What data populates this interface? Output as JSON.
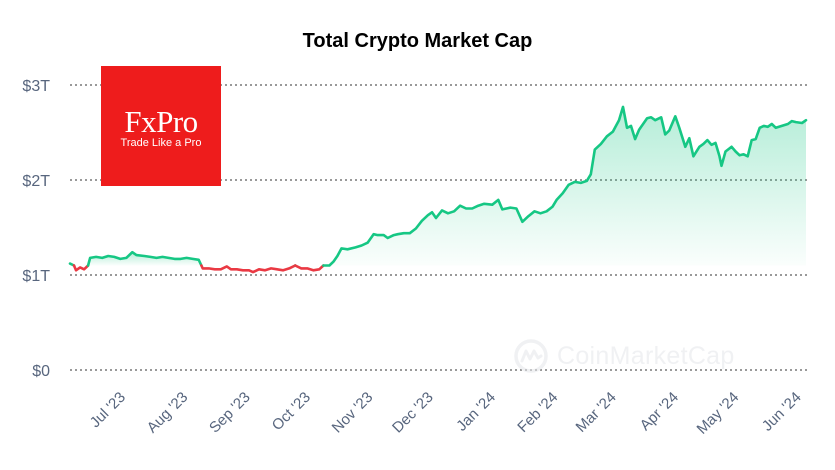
{
  "title": "Total Crypto Market Cap",
  "logo": {
    "name": "FxPro",
    "slogan": "Trade Like a Pro",
    "color": "#ee1c1c"
  },
  "watermark": "CoinMarketCap",
  "colors": {
    "up": "#16c784",
    "down": "#ea3943",
    "grid": "#333333",
    "tick": "#58667e"
  },
  "chart_data": {
    "type": "line",
    "title": "Total Crypto Market Cap",
    "xlabel": "",
    "ylabel": "",
    "unit": "USD trillions",
    "ylim": [
      0,
      3
    ],
    "yticks": [
      {
        "value": 0,
        "label": "$0"
      },
      {
        "value": 1,
        "label": "$1T"
      },
      {
        "value": 2,
        "label": "$2T"
      },
      {
        "value": 3,
        "label": "$3T"
      }
    ],
    "xlim": [
      "2023-06-12",
      "2024-06-14"
    ],
    "xticks": [
      {
        "date": "2023-07-01",
        "label": "Jul '23"
      },
      {
        "date": "2023-08-01",
        "label": "Aug '23"
      },
      {
        "date": "2023-09-01",
        "label": "Sep '23"
      },
      {
        "date": "2023-10-01",
        "label": "Oct '23"
      },
      {
        "date": "2023-11-01",
        "label": "Nov '23"
      },
      {
        "date": "2023-12-01",
        "label": "Dec '23"
      },
      {
        "date": "2024-01-01",
        "label": "Jan '24"
      },
      {
        "date": "2024-02-01",
        "label": "Feb '24"
      },
      {
        "date": "2024-03-01",
        "label": "Mar '24"
      },
      {
        "date": "2024-04-01",
        "label": "Apr '24"
      },
      {
        "date": "2024-05-01",
        "label": "May '24"
      },
      {
        "date": "2024-06-01",
        "label": "Jun '24"
      }
    ],
    "grid": "horizontal dashed",
    "baseline": 1.1,
    "series": [
      {
        "points": [
          [
            "2023-06-12",
            1.12
          ],
          [
            "2023-06-14",
            1.1
          ],
          [
            "2023-06-15",
            1.05
          ],
          [
            "2023-06-17",
            1.08
          ],
          [
            "2023-06-19",
            1.06
          ],
          [
            "2023-06-21",
            1.1
          ],
          [
            "2023-06-22",
            1.18
          ],
          [
            "2023-06-25",
            1.19
          ],
          [
            "2023-06-28",
            1.18
          ],
          [
            "2023-07-01",
            1.2
          ],
          [
            "2023-07-04",
            1.19
          ],
          [
            "2023-07-07",
            1.17
          ],
          [
            "2023-07-10",
            1.18
          ],
          [
            "2023-07-13",
            1.24
          ],
          [
            "2023-07-15",
            1.21
          ],
          [
            "2023-07-19",
            1.2
          ],
          [
            "2023-07-22",
            1.19
          ],
          [
            "2023-07-25",
            1.18
          ],
          [
            "2023-07-28",
            1.19
          ],
          [
            "2023-07-31",
            1.18
          ],
          [
            "2023-08-03",
            1.17
          ],
          [
            "2023-08-06",
            1.17
          ],
          [
            "2023-08-09",
            1.18
          ],
          [
            "2023-08-12",
            1.17
          ],
          [
            "2023-08-15",
            1.16
          ],
          [
            "2023-08-17",
            1.07
          ],
          [
            "2023-08-20",
            1.07
          ],
          [
            "2023-08-23",
            1.06
          ],
          [
            "2023-08-26",
            1.06
          ],
          [
            "2023-08-29",
            1.09
          ],
          [
            "2023-08-31",
            1.06
          ],
          [
            "2023-09-03",
            1.06
          ],
          [
            "2023-09-06",
            1.05
          ],
          [
            "2023-09-09",
            1.05
          ],
          [
            "2023-09-11",
            1.03
          ],
          [
            "2023-09-14",
            1.06
          ],
          [
            "2023-09-17",
            1.05
          ],
          [
            "2023-09-20",
            1.07
          ],
          [
            "2023-09-23",
            1.06
          ],
          [
            "2023-09-26",
            1.05
          ],
          [
            "2023-09-29",
            1.07
          ],
          [
            "2023-10-02",
            1.1
          ],
          [
            "2023-10-05",
            1.07
          ],
          [
            "2023-10-08",
            1.07
          ],
          [
            "2023-10-11",
            1.05
          ],
          [
            "2023-10-14",
            1.06
          ],
          [
            "2023-10-16",
            1.1
          ],
          [
            "2023-10-19",
            1.1
          ],
          [
            "2023-10-21",
            1.14
          ],
          [
            "2023-10-23",
            1.2
          ],
          [
            "2023-10-25",
            1.28
          ],
          [
            "2023-10-28",
            1.27
          ],
          [
            "2023-11-01",
            1.29
          ],
          [
            "2023-11-04",
            1.31
          ],
          [
            "2023-11-07",
            1.34
          ],
          [
            "2023-11-10",
            1.43
          ],
          [
            "2023-11-12",
            1.42
          ],
          [
            "2023-11-15",
            1.42
          ],
          [
            "2023-11-17",
            1.39
          ],
          [
            "2023-11-20",
            1.42
          ],
          [
            "2023-11-22",
            1.43
          ],
          [
            "2023-11-25",
            1.44
          ],
          [
            "2023-11-28",
            1.44
          ],
          [
            "2023-12-01",
            1.49
          ],
          [
            "2023-12-04",
            1.57
          ],
          [
            "2023-12-07",
            1.63
          ],
          [
            "2023-12-09",
            1.66
          ],
          [
            "2023-12-11",
            1.6
          ],
          [
            "2023-12-14",
            1.68
          ],
          [
            "2023-12-17",
            1.65
          ],
          [
            "2023-12-20",
            1.67
          ],
          [
            "2023-12-23",
            1.73
          ],
          [
            "2023-12-26",
            1.7
          ],
          [
            "2023-12-29",
            1.7
          ],
          [
            "2024-01-01",
            1.73
          ],
          [
            "2024-01-04",
            1.75
          ],
          [
            "2024-01-08",
            1.74
          ],
          [
            "2024-01-11",
            1.79
          ],
          [
            "2024-01-13",
            1.69
          ],
          [
            "2024-01-17",
            1.71
          ],
          [
            "2024-01-20",
            1.7
          ],
          [
            "2024-01-23",
            1.56
          ],
          [
            "2024-01-26",
            1.62
          ],
          [
            "2024-01-29",
            1.67
          ],
          [
            "2024-02-01",
            1.65
          ],
          [
            "2024-02-04",
            1.67
          ],
          [
            "2024-02-07",
            1.72
          ],
          [
            "2024-02-09",
            1.79
          ],
          [
            "2024-02-12",
            1.86
          ],
          [
            "2024-02-15",
            1.95
          ],
          [
            "2024-02-18",
            1.98
          ],
          [
            "2024-02-21",
            1.97
          ],
          [
            "2024-02-24",
            1.99
          ],
          [
            "2024-02-26",
            2.06
          ],
          [
            "2024-02-28",
            2.32
          ],
          [
            "2024-03-02",
            2.38
          ],
          [
            "2024-03-05",
            2.46
          ],
          [
            "2024-03-08",
            2.51
          ],
          [
            "2024-03-11",
            2.63
          ],
          [
            "2024-03-13",
            2.77
          ],
          [
            "2024-03-15",
            2.55
          ],
          [
            "2024-03-17",
            2.57
          ],
          [
            "2024-03-19",
            2.43
          ],
          [
            "2024-03-21",
            2.53
          ],
          [
            "2024-03-23",
            2.59
          ],
          [
            "2024-03-25",
            2.65
          ],
          [
            "2024-03-27",
            2.66
          ],
          [
            "2024-03-29",
            2.63
          ],
          [
            "2024-04-01",
            2.66
          ],
          [
            "2024-04-03",
            2.48
          ],
          [
            "2024-04-05",
            2.52
          ],
          [
            "2024-04-08",
            2.67
          ],
          [
            "2024-04-10",
            2.55
          ],
          [
            "2024-04-13",
            2.35
          ],
          [
            "2024-04-15",
            2.44
          ],
          [
            "2024-04-17",
            2.25
          ],
          [
            "2024-04-20",
            2.35
          ],
          [
            "2024-04-22",
            2.38
          ],
          [
            "2024-04-24",
            2.42
          ],
          [
            "2024-04-26",
            2.37
          ],
          [
            "2024-04-28",
            2.39
          ],
          [
            "2024-04-30",
            2.25
          ],
          [
            "2024-05-01",
            2.15
          ],
          [
            "2024-05-03",
            2.3
          ],
          [
            "2024-05-06",
            2.35
          ],
          [
            "2024-05-08",
            2.3
          ],
          [
            "2024-05-10",
            2.26
          ],
          [
            "2024-05-12",
            2.27
          ],
          [
            "2024-05-14",
            2.25
          ],
          [
            "2024-05-16",
            2.42
          ],
          [
            "2024-05-18",
            2.43
          ],
          [
            "2024-05-20",
            2.55
          ],
          [
            "2024-05-22",
            2.57
          ],
          [
            "2024-05-24",
            2.56
          ],
          [
            "2024-05-26",
            2.59
          ],
          [
            "2024-05-28",
            2.55
          ],
          [
            "2024-05-31",
            2.57
          ],
          [
            "2024-06-03",
            2.59
          ],
          [
            "2024-06-05",
            2.62
          ],
          [
            "2024-06-07",
            2.61
          ],
          [
            "2024-06-10",
            2.6
          ],
          [
            "2024-06-12",
            2.63
          ]
        ]
      }
    ]
  }
}
